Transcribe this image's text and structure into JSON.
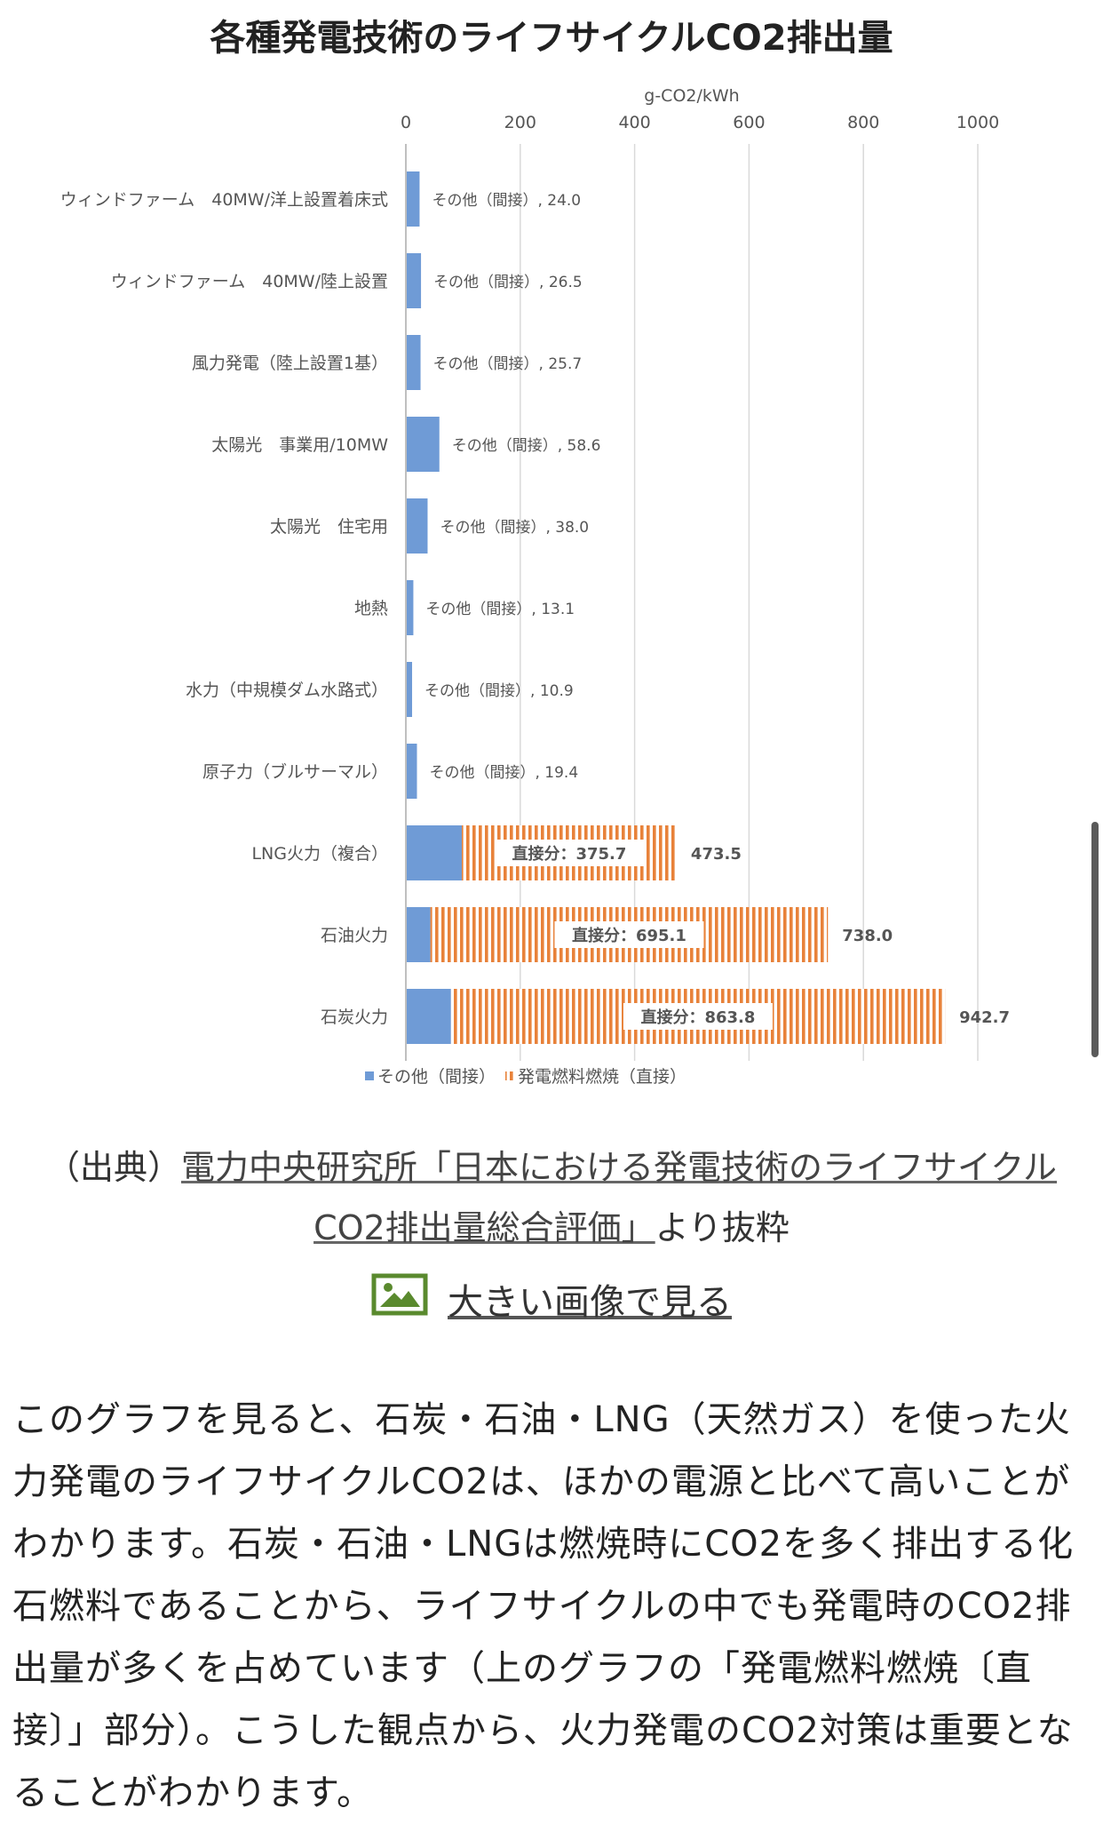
{
  "chart_data": {
    "type": "bar",
    "title": "各種発電技術のライフサイクルCO2排出量",
    "unit_label": "g-CO2/kWh",
    "xlim": [
      0,
      1000
    ],
    "xticks": [
      "0",
      "200",
      "400",
      "600",
      "800",
      "1000"
    ],
    "grid": true,
    "legend_position": "bottom",
    "categories": [
      "ウィンドファーム　40MW/洋上設置着床式",
      "ウィンドファーム　40MW/陸上設置",
      "風力発電（陸上設置1基）",
      "太陽光　事業用/10MW",
      "太陽光　住宅用",
      "地熱",
      "水力（中規模ダム水路式）",
      "原子力（ブルサーマル）",
      "LNG火力（複合）",
      "石油火力",
      "石炭火力"
    ],
    "series": [
      {
        "name": "その他（間接）",
        "color": "#6f9bd6",
        "values": [
          24.0,
          26.5,
          25.7,
          58.6,
          38.0,
          13.1,
          10.9,
          19.4,
          97.8,
          42.9,
          78.9
        ]
      },
      {
        "name": "発電燃料燃焼（直接）",
        "color": "#e8823a",
        "values": [
          0,
          0,
          0,
          0,
          0,
          0,
          0,
          0,
          375.7,
          695.1,
          863.8
        ]
      }
    ],
    "data_labels": [
      "その他（間接）, 24.0",
      "その他（間接）, 26.5",
      "その他（間接）, 25.7",
      "その他（間接）, 58.6",
      "その他（間接）, 38.0",
      "その他（間接）, 13.1",
      "その他（間接）, 10.9",
      "その他（間接）, 19.4",
      "直接分：375.7",
      "直接分：695.1",
      "直接分：863.8"
    ],
    "totals": [
      null,
      null,
      null,
      null,
      null,
      null,
      null,
      null,
      "473.5",
      "738.0",
      "942.7"
    ]
  },
  "caption": {
    "prefix": "（出典）",
    "link_text_1": "電力中央研究所「日本における発電技術のライフサイクル",
    "link_text_2": "CO2排出量総合評価」",
    "suffix": "より抜粋"
  },
  "large_image_link": "大きい画像で見る",
  "paragraph": "このグラフを見ると、石炭・石油・LNG（天然ガス）を使った火力発電のライフサイクルCO2は、ほかの電源と比べて高いことがわかります。石炭・石油・LNGは燃焼時にCO2を多く排出する化石燃料であることから、ライフサイクルの中でも発電時のCO2排出量が多くを占めています（上のグラフの「発電燃料燃焼〔直接〕」部分）。こうした観点から、火力発電のCO2対策は重要となることがわかります。",
  "colors": {
    "indirect": "#6f9bd6",
    "direct": "#e8823a",
    "image_icon": "#5a8a2e"
  }
}
